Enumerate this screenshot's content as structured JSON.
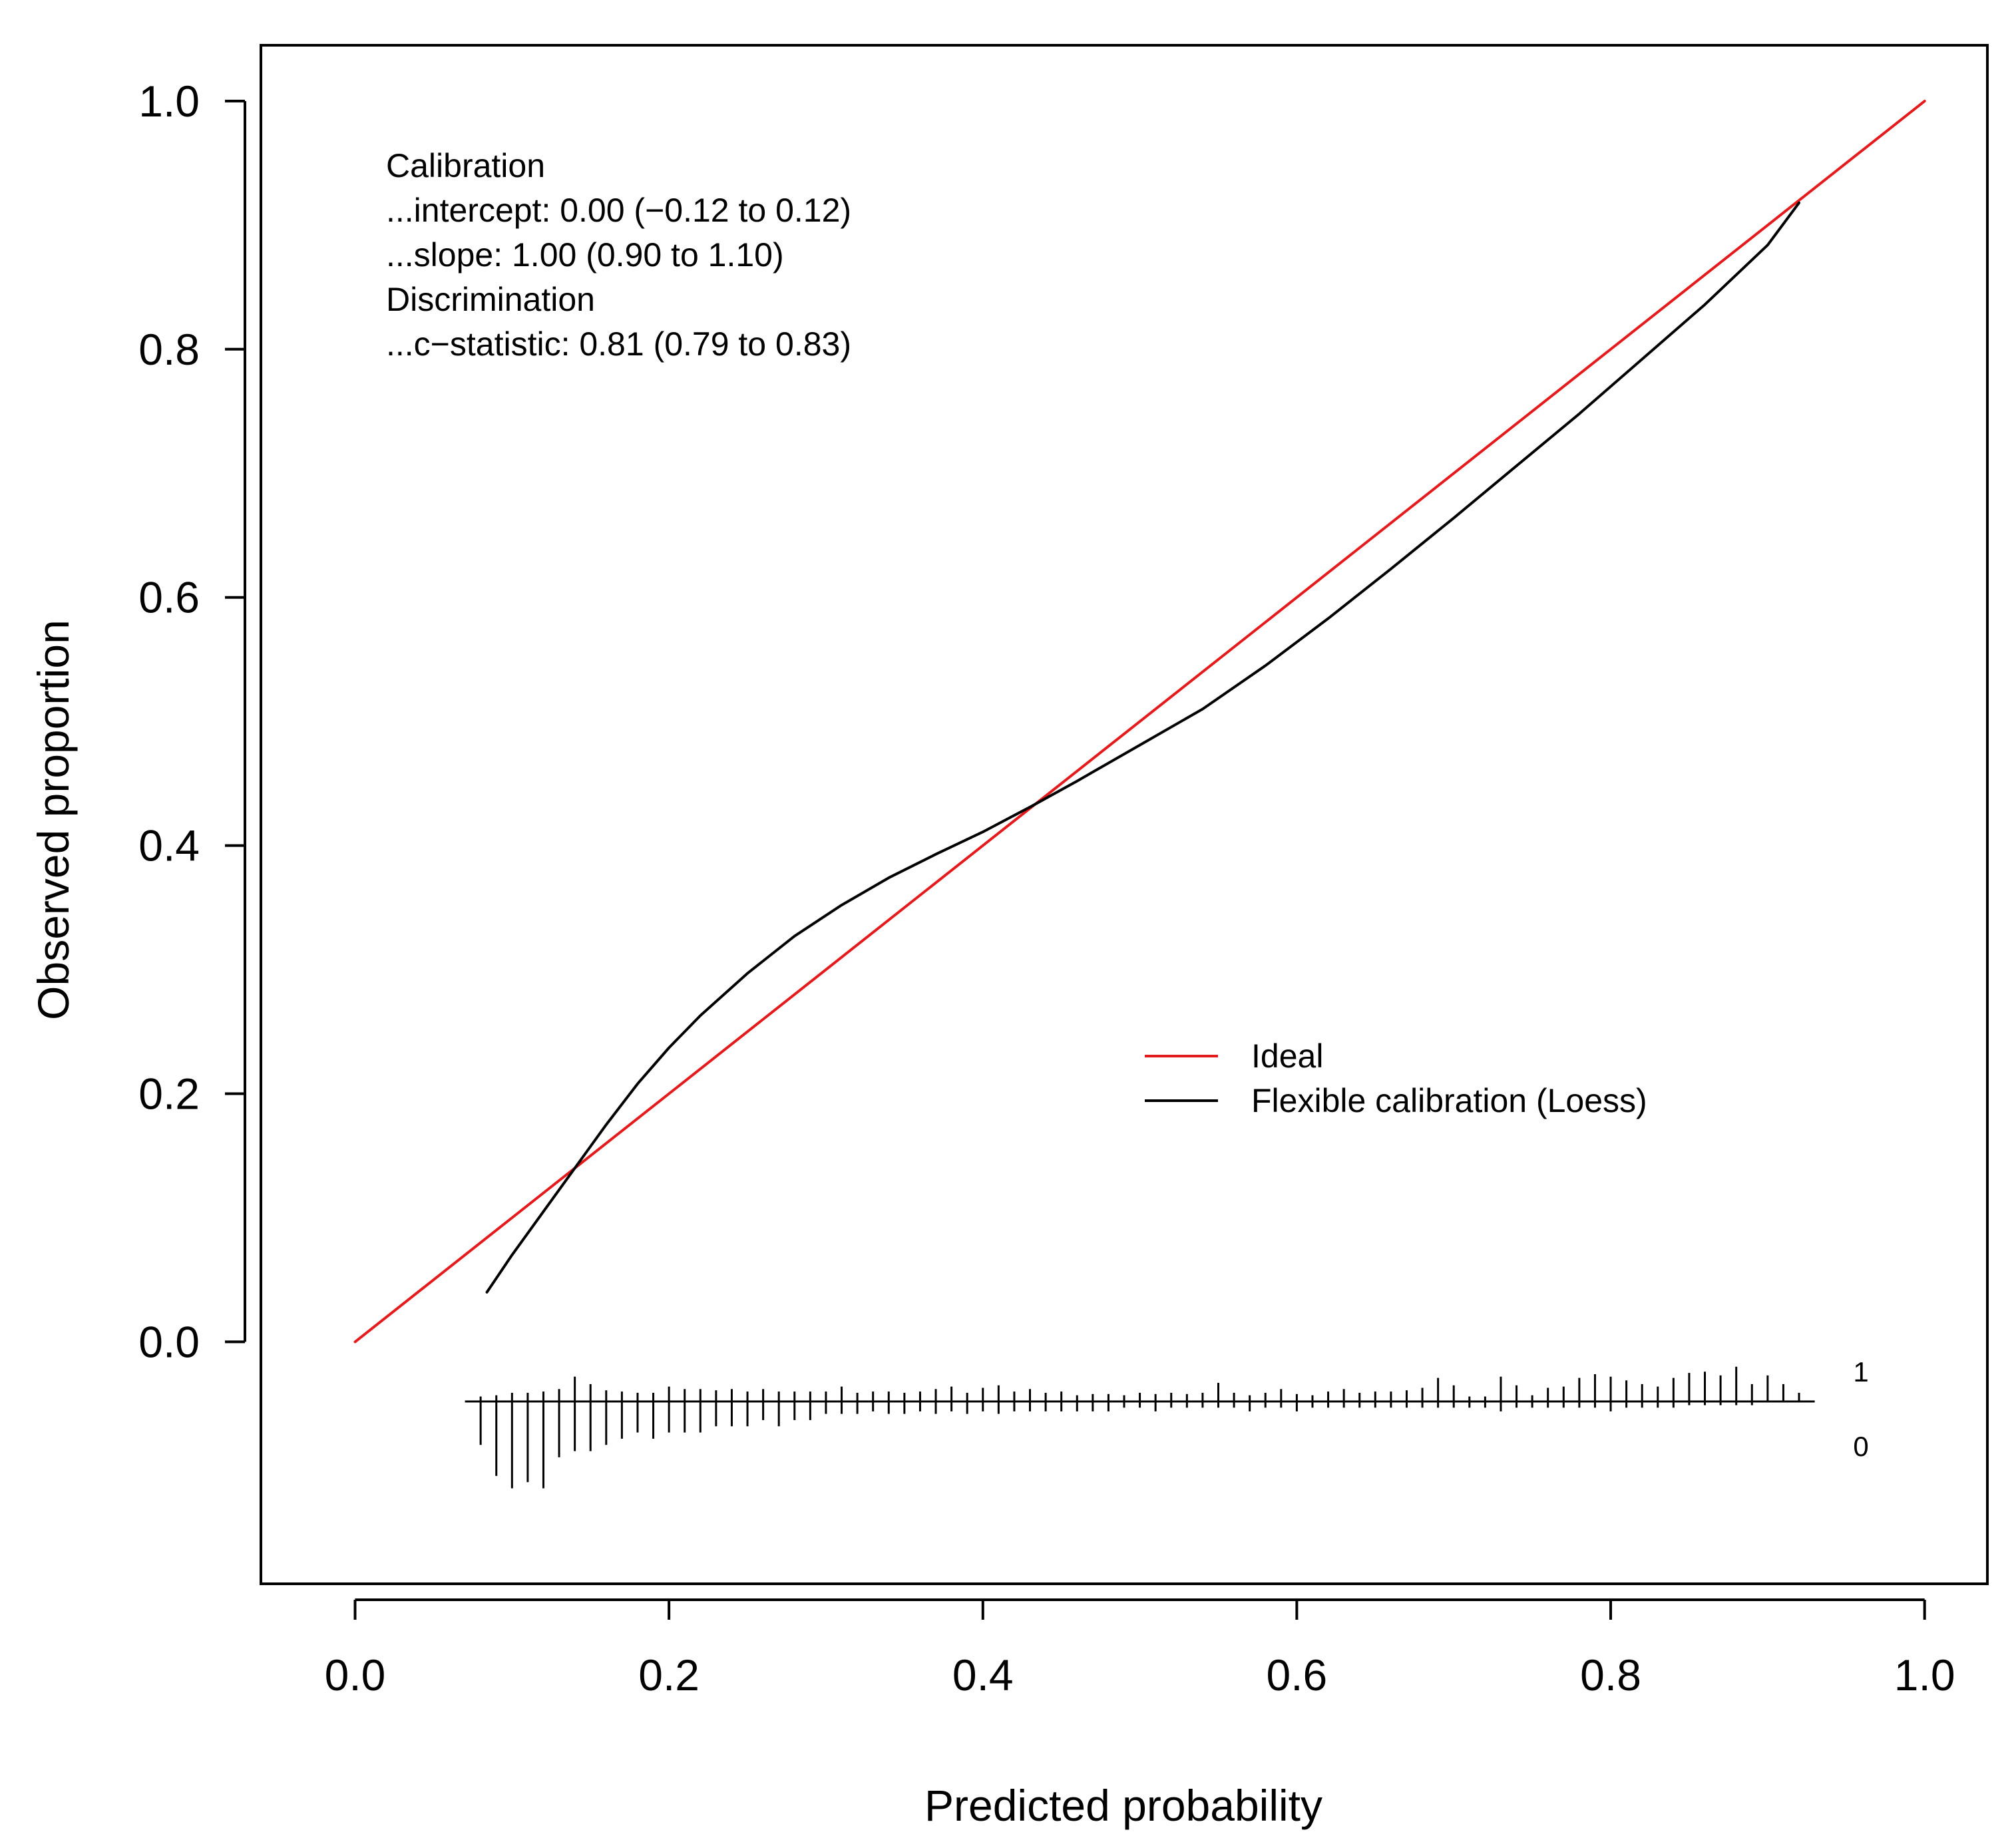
{
  "chart_data": {
    "type": "line",
    "title": "",
    "xlabel": "Predicted probability",
    "ylabel": "Observed proportion",
    "xlim": [
      -0.06,
      1.04
    ],
    "ylim": [
      -0.195,
      1.045
    ],
    "x_ticks": [
      "0.0",
      "0.2",
      "0.4",
      "0.6",
      "0.8",
      "1.0"
    ],
    "y_ticks": [
      "0.0",
      "0.2",
      "0.4",
      "0.6",
      "0.8",
      "1.0"
    ],
    "grid": false,
    "annotations": [
      "Calibration",
      "...intercept: 0.00 (−0.12 to 0.12)",
      "...slope: 1.00 (0.90 to 1.10)",
      "Discrimination",
      "...c−statistic: 0.81 (0.79 to 0.83)"
    ],
    "legend": {
      "position": "center-right",
      "entries": [
        {
          "label": "Ideal",
          "color": "#e41a1c"
        },
        {
          "label": "Flexible calibration (Loess)",
          "color": "#000000"
        }
      ]
    },
    "series": [
      {
        "name": "Ideal",
        "color": "#e41a1c",
        "x": [
          0.0,
          1.0
        ],
        "y": [
          0.0,
          1.0
        ]
      },
      {
        "name": "Flexible calibration (Loess)",
        "color": "#000000",
        "x": [
          0.084,
          0.1,
          0.12,
          0.14,
          0.16,
          0.18,
          0.2,
          0.22,
          0.25,
          0.28,
          0.31,
          0.34,
          0.37,
          0.4,
          0.43,
          0.46,
          0.5,
          0.54,
          0.58,
          0.62,
          0.66,
          0.7,
          0.74,
          0.78,
          0.82,
          0.86,
          0.9,
          0.92
        ],
        "y": [
          0.04,
          0.07,
          0.105,
          0.14,
          0.175,
          0.208,
          0.237,
          0.263,
          0.297,
          0.327,
          0.352,
          0.374,
          0.393,
          0.411,
          0.431,
          0.452,
          0.481,
          0.51,
          0.545,
          0.583,
          0.623,
          0.664,
          0.706,
          0.748,
          0.792,
          0.836,
          0.884,
          0.918
        ]
      }
    ],
    "rug": {
      "baseline_label_upper": "1",
      "baseline_label_lower": "0",
      "x": [
        0.08,
        0.09,
        0.1,
        0.11,
        0.12,
        0.13,
        0.14,
        0.15,
        0.16,
        0.17,
        0.18,
        0.19,
        0.2,
        0.21,
        0.22,
        0.23,
        0.24,
        0.25,
        0.26,
        0.27,
        0.28,
        0.29,
        0.3,
        0.31,
        0.32,
        0.33,
        0.34,
        0.35,
        0.36,
        0.37,
        0.38,
        0.39,
        0.4,
        0.41,
        0.42,
        0.43,
        0.44,
        0.45,
        0.46,
        0.47,
        0.48,
        0.49,
        0.5,
        0.51,
        0.52,
        0.53,
        0.54,
        0.55,
        0.56,
        0.57,
        0.58,
        0.59,
        0.6,
        0.61,
        0.62,
        0.63,
        0.64,
        0.65,
        0.66,
        0.67,
        0.68,
        0.69,
        0.7,
        0.71,
        0.72,
        0.73,
        0.74,
        0.75,
        0.76,
        0.77,
        0.78,
        0.79,
        0.8,
        0.81,
        0.82,
        0.83,
        0.84,
        0.85,
        0.86,
        0.87,
        0.88,
        0.89,
        0.9,
        0.91,
        0.92
      ],
      "events_height": [
        0.004,
        0.005,
        0.007,
        0.007,
        0.008,
        0.01,
        0.02,
        0.014,
        0.009,
        0.008,
        0.007,
        0.007,
        0.012,
        0.01,
        0.01,
        0.009,
        0.01,
        0.008,
        0.01,
        0.008,
        0.008,
        0.008,
        0.008,
        0.012,
        0.007,
        0.008,
        0.008,
        0.007,
        0.008,
        0.01,
        0.012,
        0.007,
        0.011,
        0.013,
        0.008,
        0.01,
        0.007,
        0.008,
        0.005,
        0.006,
        0.006,
        0.005,
        0.007,
        0.006,
        0.007,
        0.006,
        0.007,
        0.015,
        0.007,
        0.005,
        0.007,
        0.01,
        0.006,
        0.005,
        0.008,
        0.01,
        0.007,
        0.008,
        0.008,
        0.009,
        0.011,
        0.019,
        0.013,
        0.004,
        0.004,
        0.02,
        0.013,
        0.005,
        0.011,
        0.012,
        0.019,
        0.022,
        0.02,
        0.017,
        0.014,
        0.012,
        0.019,
        0.023,
        0.024,
        0.021,
        0.028,
        0.014,
        0.021,
        0.014,
        0.007
      ],
      "nonevents_height": [
        0.035,
        0.06,
        0.07,
        0.065,
        0.07,
        0.045,
        0.04,
        0.04,
        0.035,
        0.03,
        0.025,
        0.03,
        0.025,
        0.025,
        0.025,
        0.02,
        0.02,
        0.02,
        0.015,
        0.02,
        0.015,
        0.015,
        0.01,
        0.01,
        0.01,
        0.008,
        0.01,
        0.01,
        0.008,
        0.01,
        0.008,
        0.01,
        0.008,
        0.01,
        0.008,
        0.008,
        0.008,
        0.008,
        0.008,
        0.008,
        0.008,
        0.005,
        0.005,
        0.008,
        0.005,
        0.005,
        0.005,
        0.005,
        0.005,
        0.008,
        0.005,
        0.005,
        0.008,
        0.005,
        0.005,
        0.005,
        0.005,
        0.005,
        0.005,
        0.005,
        0.005,
        0.005,
        0.005,
        0.005,
        0.005,
        0.008,
        0.005,
        0.005,
        0.005,
        0.005,
        0.005,
        0.005,
        0.008,
        0.005,
        0.005,
        0.005,
        0.005,
        0.003,
        0.003,
        0.003,
        0.003,
        0.003,
        0.0,
        0.0,
        0.0
      ]
    }
  }
}
